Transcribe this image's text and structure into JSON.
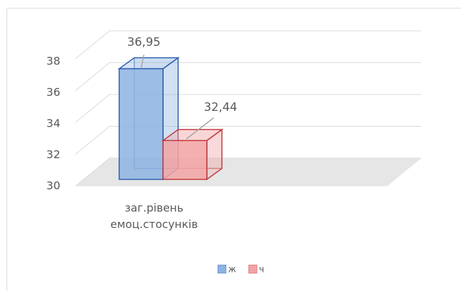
{
  "chart_data": {
    "type": "bar3d",
    "categories": [
      "заг.рівень емоц.стосунків"
    ],
    "series": [
      {
        "name": "ж",
        "color": "#8db3e2",
        "values": [
          36.95
        ],
        "value_labels": [
          "36,95"
        ]
      },
      {
        "name": "ч",
        "color": "#f2a3a3",
        "values": [
          32.44
        ],
        "value_labels": [
          "32,44"
        ]
      }
    ],
    "ylim": [
      30,
      38
    ],
    "yticks": [
      30,
      32,
      34,
      36,
      38
    ],
    "grid": true,
    "legend": "bottom"
  }
}
